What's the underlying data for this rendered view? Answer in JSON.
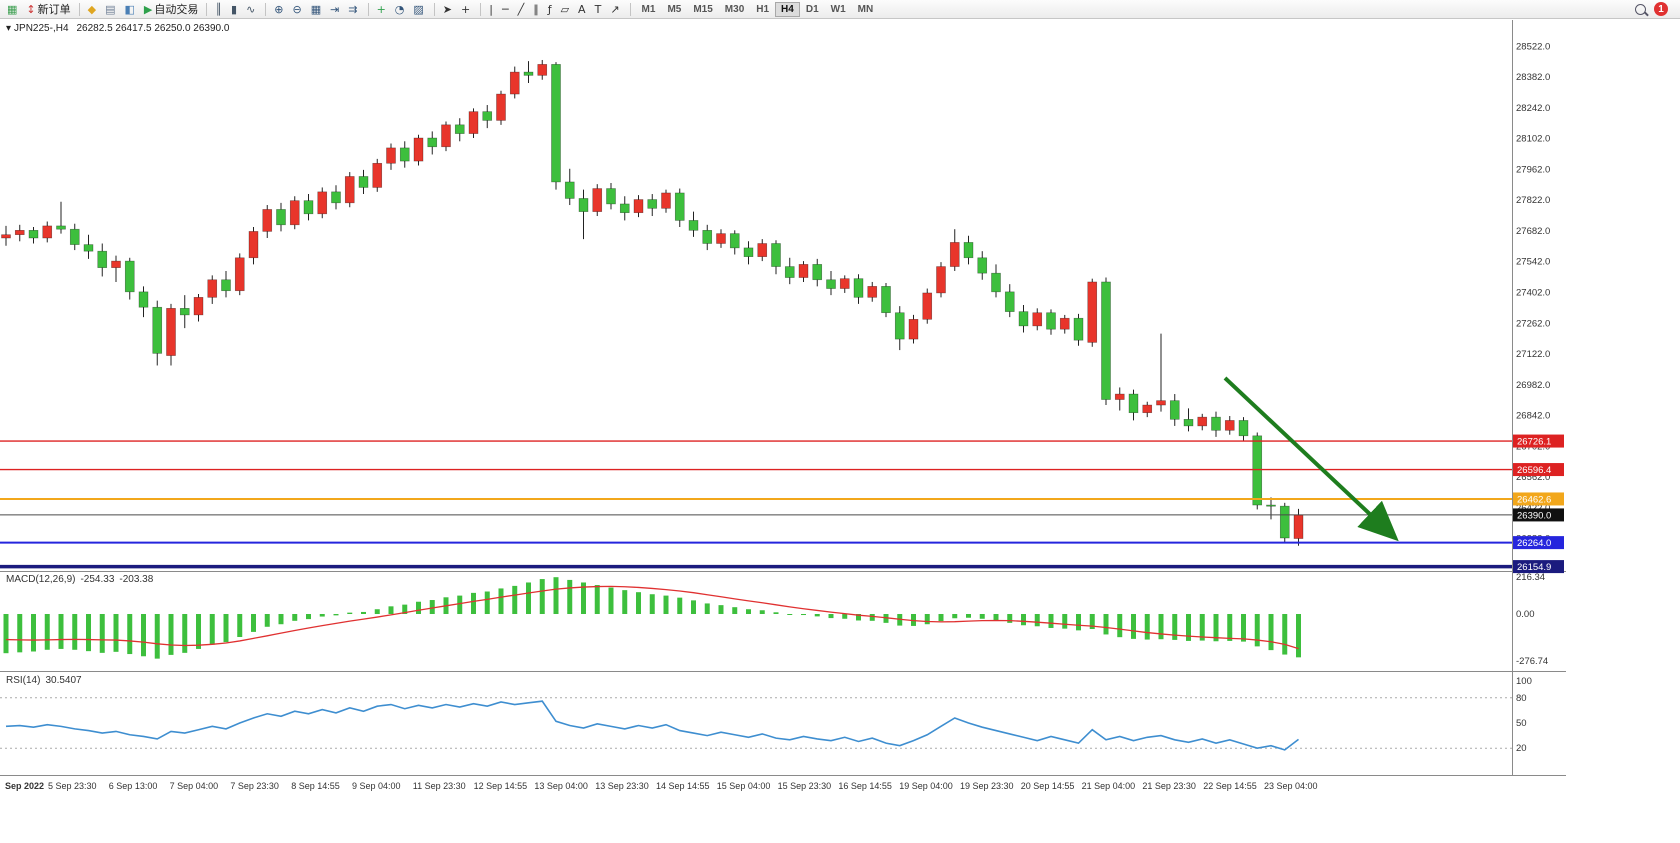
{
  "window": {
    "dropdown_glyph": "▾",
    "symbol_period": "JPN225-,H4",
    "ohlc_text": "26282.5 26417.5 26250.0 26390.0"
  },
  "toolbar": {
    "notification_count": "1",
    "timeframes": {
      "items": [
        "M1",
        "M5",
        "M15",
        "M30",
        "H1",
        "H4",
        "D1",
        "W1",
        "MN"
      ],
      "active": "H4"
    },
    "items": [
      {
        "t": "btn",
        "name": "new-chart-button",
        "glyph": "▦",
        "color": "#3a9e4e"
      },
      {
        "t": "btn",
        "name": "new-order-button",
        "glyph": "↕",
        "color": "#cc3333",
        "label": "新订单"
      },
      {
        "t": "sep"
      },
      {
        "t": "btn",
        "name": "profiles-button",
        "glyph": "◆",
        "color": "#dfa621"
      },
      {
        "t": "btn",
        "name": "market-watch-button",
        "glyph": "▤",
        "color": "#6f7f95"
      },
      {
        "t": "btn",
        "name": "navigator-button",
        "glyph": "◧",
        "color": "#4a7fb5"
      },
      {
        "t": "btn",
        "name": "auto-trading-button",
        "glyph": "▶",
        "color": "#2fa14c",
        "label": "自动交易"
      },
      {
        "t": "sep"
      },
      {
        "t": "btn",
        "name": "bar-chart-type-button",
        "glyph": "║",
        "color": "#445566"
      },
      {
        "t": "btn",
        "name": "candlestick-type-button",
        "glyph": "▮",
        "color": "#445566"
      },
      {
        "t": "btn",
        "name": "line-chart-type-button",
        "glyph": "∿",
        "color": "#445566"
      },
      {
        "t": "sep"
      },
      {
        "t": "btn",
        "name": "zoom-in-button",
        "glyph": "⊕",
        "color": "#33557a"
      },
      {
        "t": "btn",
        "name": "zoom-out-button",
        "glyph": "⊖",
        "color": "#33557a"
      },
      {
        "t": "btn",
        "name": "tile-windows-button",
        "glyph": "▦",
        "color": "#33557a"
      },
      {
        "t": "btn",
        "name": "auto-scroll-button",
        "glyph": "⇥",
        "color": "#33557a"
      },
      {
        "t": "btn",
        "name": "chart-shift-button",
        "glyph": "⇉",
        "color": "#33557a"
      },
      {
        "t": "sep"
      },
      {
        "t": "btn",
        "name": "indicators-button",
        "glyph": "+",
        "color": "#2fa14c"
      },
      {
        "t": "btn",
        "name": "periods-button",
        "glyph": "◔",
        "color": "#33557a"
      },
      {
        "t": "btn",
        "name": "templates-button",
        "glyph": "▨",
        "color": "#33557a"
      },
      {
        "t": "sep"
      },
      {
        "t": "btn",
        "name": "cursor-tool-button",
        "glyph": "➤",
        "color": "#333333"
      },
      {
        "t": "btn",
        "name": "crosshair-tool-button",
        "glyph": "+",
        "color": "#333333"
      },
      {
        "t": "sep"
      },
      {
        "t": "btn",
        "name": "vertical-line-tool-button",
        "glyph": "|",
        "color": "#333333"
      },
      {
        "t": "btn",
        "name": "horizontal-line-tool-button",
        "glyph": "─",
        "color": "#333333"
      },
      {
        "t": "btn",
        "name": "trendline-tool-button",
        "glyph": "╱",
        "color": "#333333"
      },
      {
        "t": "btn",
        "name": "channel-tool-button",
        "glyph": "∥",
        "color": "#333333"
      },
      {
        "t": "btn",
        "name": "fibonacci-tool-button",
        "glyph": "ƒ",
        "color": "#333333"
      },
      {
        "t": "btn",
        "name": "shapes-tool-button",
        "glyph": "▱",
        "color": "#333333"
      },
      {
        "t": "btn",
        "name": "text-tool-button",
        "glyph": "A",
        "color": "#333333"
      },
      {
        "t": "btn",
        "name": "text-label-tool-button",
        "glyph": "T",
        "color": "#333333"
      },
      {
        "t": "btn",
        "name": "arrow-objects-tool-button",
        "glyph": "↗",
        "color": "#333333"
      },
      {
        "t": "sep"
      }
    ]
  },
  "colors": {
    "bull_up": "#e8352b",
    "bear_down": "#3dbf3d",
    "wick": "#222222",
    "macd_hist": "#3dbf3d",
    "macd_signal": "#e03131",
    "rsi_line": "#3e8ed0",
    "axis_text": "#333333",
    "divider": "#8a8a8a",
    "arrow": "#1e7d1e",
    "badge_text": "#ffffff"
  },
  "chart_data": {
    "type": "candlestick",
    "symbol": "JPN225-",
    "timeframe": "H4",
    "ohlc_current": {
      "open": 26282.5,
      "high": 26417.5,
      "low": 26250.0,
      "close": 26390.0
    },
    "price_range": {
      "top": 28560,
      "bottom": 26135
    },
    "price_axis_labels": [
      28522,
      28382,
      28242,
      28102,
      27962,
      27822,
      27682,
      27542,
      27402,
      27262,
      27122,
      26982,
      26842,
      26702,
      26562,
      26422,
      26282,
      26142
    ],
    "hlines": [
      {
        "value": 26726.1,
        "label": "26726.1",
        "color": "#dd2222",
        "width": 1.4,
        "badge_bg": "#dd2222"
      },
      {
        "value": 26596.4,
        "label": "26596.4",
        "color": "#dd2222",
        "width": 1.4,
        "badge_bg": "#dd2222"
      },
      {
        "value": 26462.6,
        "label": "26462.6",
        "color": "#f2a71b",
        "width": 2,
        "badge_bg": "#f2a71b"
      },
      {
        "value": 26390.0,
        "label": "26390.0",
        "color": "#4a4a4a",
        "width": 1,
        "badge_bg": "#101010"
      },
      {
        "value": 26264.0,
        "label": "26264.0",
        "color": "#2525dd",
        "width": 2,
        "badge_bg": "#2525dd"
      },
      {
        "value": 26154.9,
        "label": "26154.9",
        "color": "#1b1b7e",
        "width": 3.5,
        "badge_bg": "#1b1b7e"
      }
    ],
    "candles": [
      [
        27650,
        27705,
        27615,
        27665
      ],
      [
        27665,
        27710,
        27635,
        27685
      ],
      [
        27685,
        27700,
        27625,
        27650
      ],
      [
        27650,
        27725,
        27630,
        27705
      ],
      [
        27705,
        27815,
        27670,
        27690
      ],
      [
        27690,
        27715,
        27595,
        27620
      ],
      [
        27620,
        27665,
        27555,
        27590
      ],
      [
        27590,
        27625,
        27475,
        27515
      ],
      [
        27515,
        27570,
        27450,
        27545
      ],
      [
        27545,
        27560,
        27370,
        27405
      ],
      [
        27405,
        27430,
        27290,
        27335
      ],
      [
        27335,
        27365,
        27070,
        27125
      ],
      [
        27115,
        27350,
        27070,
        27330
      ],
      [
        27330,
        27390,
        27240,
        27300
      ],
      [
        27300,
        27395,
        27270,
        27380
      ],
      [
        27380,
        27480,
        27350,
        27460
      ],
      [
        27460,
        27500,
        27380,
        27410
      ],
      [
        27410,
        27580,
        27390,
        27560
      ],
      [
        27560,
        27700,
        27530,
        27680
      ],
      [
        27680,
        27800,
        27650,
        27780
      ],
      [
        27780,
        27810,
        27680,
        27710
      ],
      [
        27710,
        27840,
        27690,
        27820
      ],
      [
        27820,
        27850,
        27730,
        27760
      ],
      [
        27760,
        27880,
        27740,
        27860
      ],
      [
        27860,
        27890,
        27780,
        27810
      ],
      [
        27810,
        27950,
        27790,
        27930
      ],
      [
        27930,
        27960,
        27850,
        27880
      ],
      [
        27880,
        28010,
        27860,
        27990
      ],
      [
        27990,
        28080,
        27960,
        28060
      ],
      [
        28060,
        28090,
        27970,
        28000
      ],
      [
        28000,
        28120,
        27980,
        28105
      ],
      [
        28105,
        28135,
        28030,
        28065
      ],
      [
        28065,
        28180,
        28045,
        28165
      ],
      [
        28165,
        28195,
        28090,
        28125
      ],
      [
        28125,
        28240,
        28105,
        28225
      ],
      [
        28225,
        28255,
        28150,
        28185
      ],
      [
        28185,
        28320,
        28165,
        28305
      ],
      [
        28305,
        28430,
        28285,
        28405
      ],
      [
        28405,
        28455,
        28355,
        28390
      ],
      [
        28390,
        28460,
        28370,
        28440
      ],
      [
        28440,
        28450,
        27870,
        27905
      ],
      [
        27905,
        27965,
        27800,
        27830
      ],
      [
        27830,
        27870,
        27645,
        27770
      ],
      [
        27770,
        27895,
        27750,
        27875
      ],
      [
        27875,
        27900,
        27780,
        27805
      ],
      [
        27805,
        27840,
        27730,
        27765
      ],
      [
        27765,
        27845,
        27745,
        27825
      ],
      [
        27825,
        27850,
        27750,
        27785
      ],
      [
        27785,
        27870,
        27765,
        27855
      ],
      [
        27855,
        27875,
        27700,
        27730
      ],
      [
        27730,
        27770,
        27655,
        27685
      ],
      [
        27685,
        27710,
        27595,
        27625
      ],
      [
        27625,
        27690,
        27605,
        27670
      ],
      [
        27670,
        27685,
        27575,
        27605
      ],
      [
        27605,
        27635,
        27530,
        27565
      ],
      [
        27565,
        27645,
        27545,
        27625
      ],
      [
        27625,
        27640,
        27485,
        27520
      ],
      [
        27520,
        27560,
        27440,
        27470
      ],
      [
        27470,
        27545,
        27450,
        27530
      ],
      [
        27530,
        27555,
        27430,
        27460
      ],
      [
        27460,
        27500,
        27390,
        27420
      ],
      [
        27420,
        27480,
        27400,
        27465
      ],
      [
        27465,
        27485,
        27350,
        27380
      ],
      [
        27380,
        27450,
        27360,
        27430
      ],
      [
        27430,
        27445,
        27290,
        27310
      ],
      [
        27310,
        27340,
        27140,
        27190
      ],
      [
        27190,
        27300,
        27170,
        27280
      ],
      [
        27280,
        27420,
        27260,
        27400
      ],
      [
        27400,
        27540,
        27380,
        27520
      ],
      [
        27520,
        27690,
        27500,
        27630
      ],
      [
        27630,
        27660,
        27530,
        27560
      ],
      [
        27560,
        27590,
        27460,
        27490
      ],
      [
        27490,
        27530,
        27380,
        27405
      ],
      [
        27405,
        27440,
        27290,
        27315
      ],
      [
        27315,
        27345,
        27220,
        27250
      ],
      [
        27250,
        27330,
        27230,
        27310
      ],
      [
        27310,
        27325,
        27210,
        27235
      ],
      [
        27235,
        27300,
        27215,
        27285
      ],
      [
        27285,
        27305,
        27160,
        27185
      ],
      [
        27175,
        27465,
        27155,
        27450
      ],
      [
        27450,
        27470,
        26890,
        26915
      ],
      [
        26915,
        26970,
        26865,
        26940
      ],
      [
        26940,
        26960,
        26820,
        26855
      ],
      [
        26855,
        26905,
        26835,
        26890
      ],
      [
        26890,
        27215,
        26860,
        26910
      ],
      [
        26910,
        26940,
        26795,
        26825
      ],
      [
        26825,
        26875,
        26770,
        26795
      ],
      [
        26795,
        26850,
        26775,
        26835
      ],
      [
        26835,
        26860,
        26745,
        26775
      ],
      [
        26775,
        26840,
        26755,
        26820
      ],
      [
        26820,
        26835,
        26725,
        26750
      ],
      [
        26750,
        26765,
        26415,
        26435
      ],
      [
        26435,
        26470,
        26370,
        26430
      ],
      [
        26430,
        26445,
        26265,
        26285
      ],
      [
        26282.5,
        26417.5,
        26250.0,
        26390.0
      ]
    ],
    "macd": {
      "name": "MACD(12,26,9)",
      "display_main": "-254.33",
      "display_signal": "-203.38",
      "ylim": [
        -276.74,
        216.34
      ],
      "axis": [
        {
          "t": "216.34",
          "v": 216.34
        },
        {
          "t": "0.00",
          "v": 0
        },
        {
          "t": "-276.74",
          "v": -276.74
        }
      ],
      "histogram": [
        -230,
        -225,
        -220,
        -210,
        -205,
        -210,
        -218,
        -228,
        -222,
        -235,
        -248,
        -262,
        -240,
        -228,
        -205,
        -180,
        -165,
        -135,
        -105,
        -75,
        -60,
        -40,
        -30,
        -15,
        -8,
        8,
        12,
        28,
        45,
        55,
        72,
        82,
        98,
        108,
        124,
        132,
        150,
        165,
        185,
        205,
        216,
        200,
        185,
        170,
        155,
        140,
        128,
        116,
        108,
        96,
        80,
        62,
        52,
        40,
        28,
        22,
        10,
        -2,
        -6,
        -14,
        -24,
        -28,
        -38,
        -40,
        -52,
        -68,
        -70,
        -60,
        -42,
        -25,
        -22,
        -28,
        -38,
        -52,
        -66,
        -72,
        -82,
        -86,
        -96,
        -88,
        -120,
        -136,
        -146,
        -150,
        -148,
        -152,
        -158,
        -156,
        -160,
        -158,
        -162,
        -190,
        -212,
        -238,
        -254.33
      ],
      "signal": [
        -150,
        -152,
        -153,
        -152,
        -150,
        -149,
        -150,
        -152,
        -153,
        -158,
        -165,
        -175,
        -182,
        -185,
        -183,
        -178,
        -170,
        -158,
        -143,
        -128,
        -112,
        -97,
        -82,
        -68,
        -55,
        -42,
        -30,
        -18,
        -5,
        8,
        22,
        35,
        48,
        61,
        74,
        86,
        99,
        111,
        123,
        135,
        146,
        153,
        158,
        161,
        162,
        160,
        156,
        150,
        143,
        135,
        125,
        113,
        101,
        89,
        77,
        66,
        54,
        42,
        31,
        21,
        11,
        2,
        -7,
        -14,
        -22,
        -31,
        -39,
        -44,
        -46,
        -45,
        -42,
        -39,
        -38,
        -39,
        -43,
        -48,
        -54,
        -60,
        -66,
        -71,
        -79,
        -89,
        -99,
        -109,
        -117,
        -124,
        -130,
        -135,
        -139,
        -143,
        -146,
        -153,
        -163,
        -178,
        -203.38
      ]
    },
    "rsi": {
      "name": "RSI(14)",
      "display_value": "30.5407",
      "ylim": [
        0,
        100
      ],
      "levels": [
        80,
        20
      ],
      "axis": [
        {
          "t": "100",
          "v": 100
        },
        {
          "t": "80",
          "v": 80
        },
        {
          "t": "50",
          "v": 50
        },
        {
          "t": "20",
          "v": 20
        }
      ],
      "values": [
        46,
        47,
        45,
        48,
        46,
        43,
        41,
        38,
        40,
        36,
        34,
        31,
        40,
        38,
        42,
        46,
        43,
        50,
        56,
        61,
        58,
        64,
        61,
        66,
        62,
        68,
        64,
        70,
        72,
        67,
        71,
        68,
        72,
        69,
        73,
        70,
        75,
        72,
        74,
        76,
        52,
        47,
        44,
        49,
        46,
        43,
        47,
        44,
        48,
        41,
        38,
        35,
        39,
        36,
        33,
        37,
        32,
        30,
        34,
        31,
        29,
        33,
        28,
        32,
        26,
        23,
        29,
        36,
        46,
        56,
        50,
        45,
        41,
        37,
        33,
        29,
        34,
        30,
        26,
        42,
        30,
        34,
        29,
        33,
        35,
        30,
        27,
        31,
        26,
        30,
        25,
        20,
        23,
        18,
        30.5
      ]
    },
    "time_axis": [
      "Sep 2022",
      "5 Sep 23:30",
      "6 Sep 13:00",
      "7 Sep 04:00",
      "7 Sep 23:30",
      "8 Sep 14:55",
      "9 Sep 04:00",
      "11 Sep 23:30",
      "12 Sep 14:55",
      "13 Sep 04:00",
      "13 Sep 23:30",
      "14 Sep 14:55",
      "15 Sep 04:00",
      "15 Sep 23:30",
      "16 Sep 14:55",
      "19 Sep 04:00",
      "19 Sep 23:30",
      "20 Sep 14:55",
      "21 Sep 04:00",
      "21 Sep 23:30",
      "22 Sep 14:55",
      "23 Sep 04:00"
    ],
    "trend_arrow": {
      "color": "#1e7d1e"
    }
  }
}
